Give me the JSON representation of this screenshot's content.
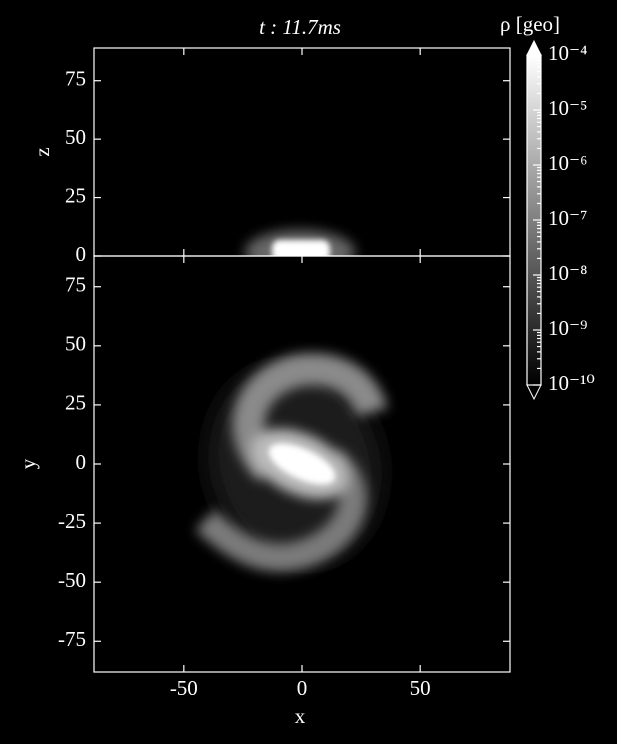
{
  "chart_data": [
    {
      "type": "heatmap",
      "title": "t : 11.7ms",
      "ylabel": "z",
      "xlim": [
        -88,
        88
      ],
      "ylim": [
        0,
        89
      ],
      "xticks": [
        -50,
        0,
        50
      ],
      "yticks": [
        0,
        25,
        50,
        75
      ]
    },
    {
      "type": "heatmap",
      "xlabel": "x",
      "ylabel": "y",
      "xlim": [
        -88,
        88
      ],
      "ylim": [
        -88,
        88
      ],
      "xticks": [
        -50,
        0,
        50
      ],
      "yticks": [
        -75,
        -50,
        -25,
        0,
        25,
        50,
        75
      ]
    },
    {
      "type": "colorbar",
      "label": "ρ [geo]",
      "log_scale": true,
      "colormap": "gray",
      "extend": "both",
      "ylim": [
        1e-10,
        0.0001
      ],
      "yticks": [
        {
          "value": 0.0001,
          "label": "10⁻⁴"
        },
        {
          "value": 1e-05,
          "label": "10⁻⁵"
        },
        {
          "value": 1e-06,
          "label": "10⁻⁶"
        },
        {
          "value": 1e-07,
          "label": "10⁻⁷"
        },
        {
          "value": 1e-08,
          "label": "10⁻⁸"
        },
        {
          "value": 1e-09,
          "label": "10⁻⁹"
        },
        {
          "value": 1e-10,
          "label": "10⁻¹⁰"
        }
      ]
    }
  ]
}
